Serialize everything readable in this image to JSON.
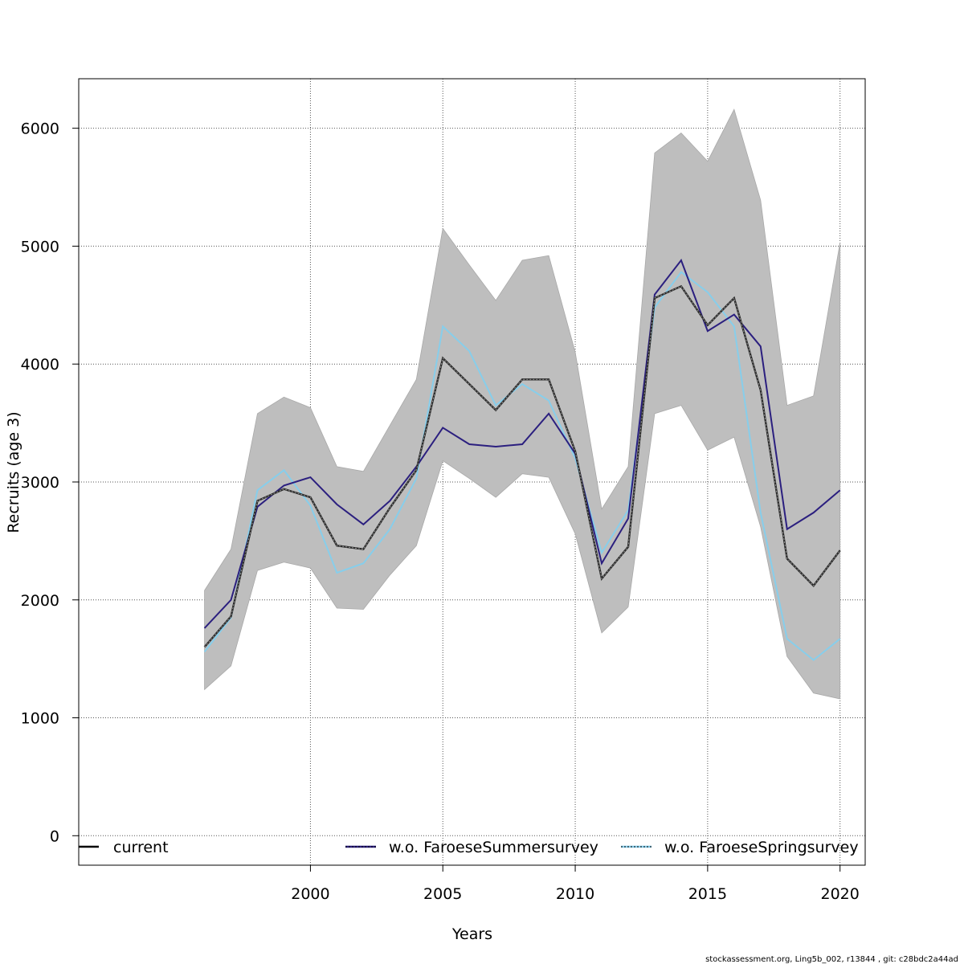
{
  "chart_data": {
    "type": "line",
    "title": "",
    "xlabel": "Years",
    "ylabel": "Recruits (age 3)",
    "x": [
      1996,
      1997,
      1998,
      1999,
      2000,
      2001,
      2002,
      2003,
      2004,
      2005,
      2006,
      2007,
      2008,
      2009,
      2010,
      2011,
      2012,
      2013,
      2014,
      2015,
      2016,
      2017,
      2018,
      2019,
      2020
    ],
    "xlim": [
      1991.25,
      2020.95
    ],
    "ylim": [
      -250,
      6420
    ],
    "xticks": [
      2000,
      2005,
      2010,
      2015,
      2020
    ],
    "yticks": [
      0,
      1000,
      2000,
      3000,
      4000,
      5000,
      6000
    ],
    "grid": true,
    "legend_position": "bottom",
    "colors": {
      "band": "#bebebe",
      "current": "#000000",
      "summer": "#2b1f7f",
      "spring": "#87ceeb"
    },
    "band": {
      "lower": [
        1240,
        1440,
        2250,
        2320,
        2270,
        1930,
        1920,
        2210,
        2460,
        3180,
        3030,
        2870,
        3070,
        3040,
        2560,
        1720,
        1940,
        3580,
        3650,
        3270,
        3380,
        2620,
        1520,
        1210,
        1160
      ],
      "upper": [
        2080,
        2430,
        3580,
        3720,
        3630,
        3130,
        3090,
        3480,
        3870,
        5150,
        4840,
        4540,
        4880,
        4920,
        4100,
        2770,
        3130,
        5790,
        5960,
        5720,
        6160,
        5390,
        3650,
        3730,
        5030
      ]
    },
    "series": [
      {
        "name": "current",
        "values": [
          1600,
          1860,
          2840,
          2940,
          2870,
          2460,
          2430,
          2780,
          3100,
          4050,
          3830,
          3610,
          3870,
          3870,
          3260,
          2180,
          2450,
          4560,
          4660,
          4330,
          4560,
          3780,
          2350,
          2120,
          2420
        ]
      },
      {
        "name": "w.o. FaroeseSummersurvey",
        "values": [
          1760,
          2000,
          2790,
          2970,
          3040,
          2810,
          2640,
          2840,
          3130,
          3460,
          3320,
          3300,
          3320,
          3580,
          3240,
          2310,
          2690,
          4590,
          4880,
          4280,
          4420,
          4150,
          2600,
          2740,
          2930
        ]
      },
      {
        "name": "w.o. FaroeseSpringsurvey",
        "values": [
          1560,
          1850,
          2930,
          3100,
          2800,
          2230,
          2310,
          2600,
          3030,
          4320,
          4110,
          3650,
          3830,
          3690,
          3200,
          2400,
          2760,
          4480,
          4780,
          4610,
          4320,
          2740,
          1670,
          1490,
          1670
        ]
      }
    ],
    "legend": [
      "current",
      "w.o. FaroeseSummersurvey",
      "w.o. FaroeseSpringsurvey"
    ]
  },
  "footer": "stockassessment.org, Ling5b_002, r13844 , git: c28bdc2a44ad"
}
